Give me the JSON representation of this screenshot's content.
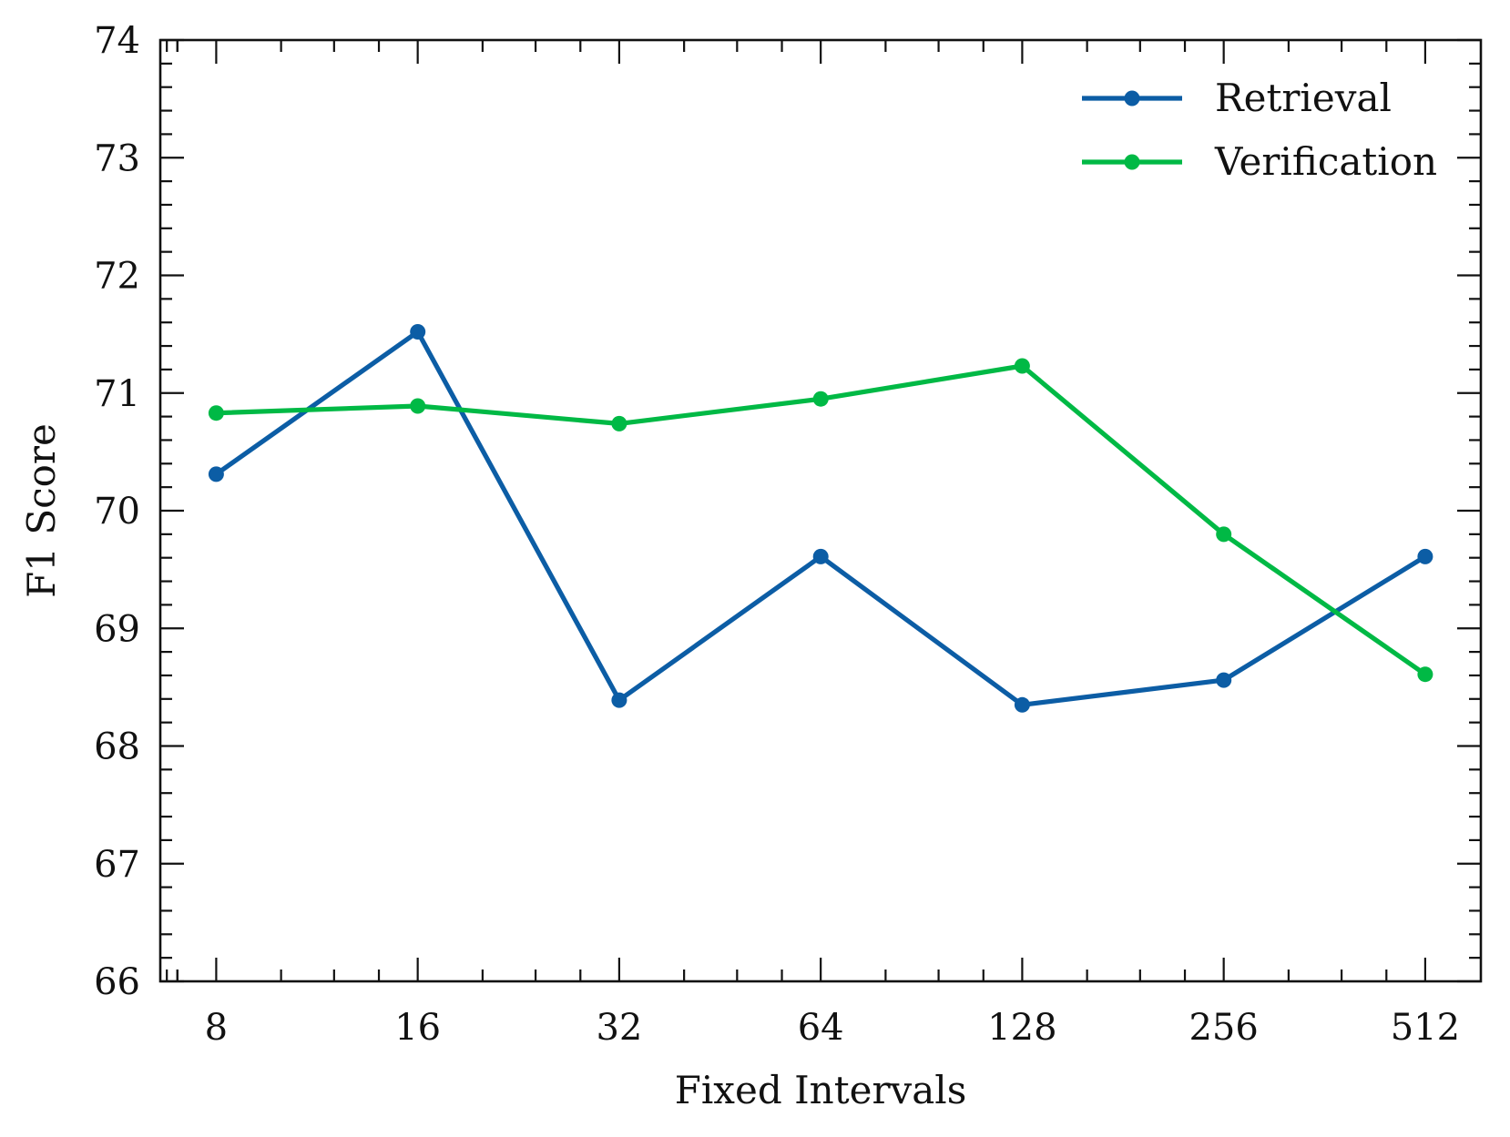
{
  "chart_data": {
    "type": "line",
    "title": "",
    "xlabel": "Fixed Intervals",
    "ylabel": "F1 Score",
    "categories": [
      "8",
      "16",
      "32",
      "64",
      "128",
      "256",
      "512"
    ],
    "x_scale": "log2",
    "ylim": [
      66,
      74
    ],
    "yticks": [
      66,
      67,
      68,
      69,
      70,
      71,
      72,
      73,
      74
    ],
    "grid": false,
    "legend_position": "top-right",
    "series": [
      {
        "name": "Retrieval",
        "color": "#0C5DA5",
        "marker": "circle",
        "values": [
          70.31,
          71.52,
          68.39,
          69.61,
          68.35,
          68.56,
          69.61
        ]
      },
      {
        "name": "Verification",
        "color": "#00B945",
        "marker": "circle",
        "values": [
          70.83,
          70.89,
          70.74,
          70.95,
          71.23,
          69.8,
          68.61
        ]
      }
    ]
  }
}
